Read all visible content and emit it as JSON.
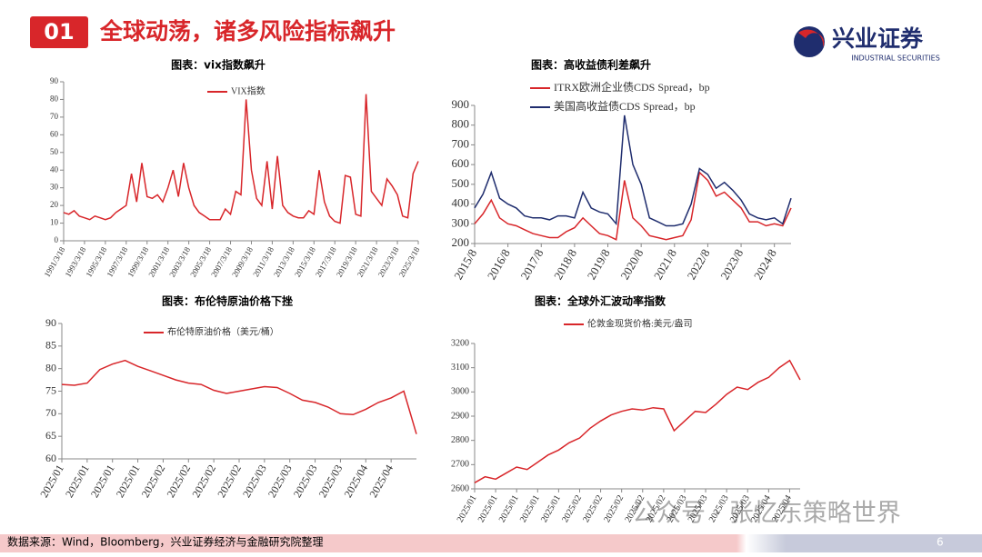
{
  "header": {
    "number": "01",
    "title": "全球动荡，诸多风险指标飙升",
    "logo": "兴业证券",
    "logo_en": "INDUSTRIAL SECURITIES"
  },
  "chart_data": [
    {
      "type": "line",
      "title": "图表：vix指数飙升",
      "categories": [
        "1991/3/18",
        null,
        null,
        null,
        "1993/3/18",
        null,
        null,
        null,
        "1995/3/18",
        null,
        null,
        null,
        "1997/3/18",
        null,
        null,
        null,
        "1999/3/18",
        null,
        null,
        null,
        "2001/3/18",
        null,
        null,
        null,
        "2003/3/18",
        null,
        null,
        null,
        "2005/3/18",
        null,
        null,
        null,
        "2007/3/18",
        null,
        null,
        null,
        "2009/3/18",
        null,
        null,
        null,
        "2011/3/18",
        null,
        null,
        null,
        "2013/3/18",
        null,
        null,
        null,
        "2015/3/18",
        null,
        null,
        null,
        "2017/3/18",
        null,
        null,
        null,
        "2019/3/18",
        null,
        null,
        null,
        "2021/3/18",
        null,
        null,
        null,
        "2023/3/18",
        null,
        null,
        null,
        "2025/3/18"
      ],
      "series": [
        {
          "name": "VIX指数",
          "color": "#d8262a",
          "values": [
            16,
            15,
            17,
            14,
            13,
            12,
            14,
            13,
            12,
            13,
            16,
            18,
            20,
            38,
            22,
            44,
            25,
            24,
            26,
            22,
            30,
            40,
            25,
            44,
            30,
            20,
            16,
            14,
            12,
            12,
            12,
            18,
            15,
            28,
            26,
            80,
            40,
            24,
            20,
            45,
            18,
            48,
            20,
            16,
            14,
            13,
            13,
            17,
            15,
            40,
            22,
            14,
            11,
            10,
            37,
            36,
            15,
            14,
            83,
            28,
            24,
            20,
            35,
            31,
            26,
            14,
            13,
            38,
            45
          ]
        }
      ],
      "ylim": [
        0,
        90
      ],
      "yticks": [
        0,
        10,
        20,
        30,
        40,
        50,
        60,
        70,
        80,
        90
      ]
    },
    {
      "type": "line",
      "title": "图表：高收益债利差飙升",
      "categories": [
        "2015/8",
        null,
        null,
        null,
        "2016/8",
        null,
        null,
        null,
        "2017/8",
        null,
        null,
        null,
        "2018/8",
        null,
        null,
        null,
        "2019/8",
        null,
        null,
        null,
        "2020/8",
        null,
        null,
        null,
        "2021/8",
        null,
        null,
        null,
        "2022/8",
        null,
        null,
        null,
        "2023/8",
        null,
        null,
        null,
        "2024/8",
        null,
        null
      ],
      "series": [
        {
          "name": "ITRX欧洲企业债CDS Spread，bp",
          "color": "#d8262a",
          "values": [
            300,
            350,
            420,
            330,
            300,
            290,
            270,
            250,
            240,
            230,
            230,
            260,
            280,
            330,
            290,
            250,
            240,
            220,
            520,
            330,
            290,
            240,
            230,
            220,
            230,
            240,
            320,
            560,
            520,
            440,
            460,
            420,
            380,
            310,
            310,
            290,
            300,
            290,
            380
          ]
        },
        {
          "name": "美国高收益债CDS Spread，bp",
          "color": "#1f2d6e",
          "values": [
            380,
            450,
            560,
            430,
            400,
            380,
            340,
            330,
            330,
            320,
            340,
            340,
            330,
            460,
            380,
            360,
            350,
            300,
            850,
            600,
            500,
            330,
            310,
            290,
            290,
            300,
            400,
            580,
            550,
            480,
            510,
            470,
            420,
            350,
            330,
            320,
            330,
            300,
            430
          ]
        }
      ],
      "ylim": [
        200,
        900
      ],
      "yticks": [
        200,
        300,
        400,
        500,
        600,
        700,
        800,
        900
      ]
    },
    {
      "type": "line",
      "title": "图表：布伦特原油价格下挫",
      "categories": [
        "2025/01",
        null,
        "2025/01",
        null,
        "2025/01",
        null,
        "2025/01",
        null,
        "2025/02",
        null,
        "2025/02",
        null,
        "2025/02",
        null,
        "2025/02",
        null,
        "2025/03",
        null,
        "2025/03",
        null,
        "2025/03",
        null,
        "2025/03",
        null,
        "2025/04",
        null,
        "2025/04",
        null,
        null
      ],
      "series": [
        {
          "name": "布伦特原油价格（美元/桶）",
          "color": "#d8262a",
          "values": [
            76.5,
            76.3,
            76.8,
            79.8,
            81.0,
            81.8,
            80.5,
            79.5,
            78.5,
            77.5,
            76.8,
            76.5,
            75.2,
            74.5,
            75.0,
            75.5,
            76.0,
            75.8,
            74.5,
            73.0,
            72.5,
            71.5,
            70.0,
            69.8,
            71.0,
            72.5,
            73.5,
            75.0,
            65.5
          ]
        }
      ],
      "ylim": [
        60,
        90
      ],
      "yticks": [
        60,
        65,
        70,
        75,
        80,
        85,
        90
      ]
    },
    {
      "type": "line",
      "title": "图表：全球外汇波动率指数",
      "categories": [
        "2025/01",
        null,
        "2025/01",
        null,
        "2025/01",
        null,
        "2025/01",
        null,
        "2025/01",
        null,
        "2025/02",
        null,
        "2025/02",
        null,
        "2025/02",
        null,
        "2025/02",
        null,
        "2025/02",
        null,
        "2025/03",
        null,
        "2025/03",
        null,
        "2025/03",
        null,
        "2025/03",
        null,
        "2025/04",
        null,
        "2025/04",
        null
      ],
      "series": [
        {
          "name": "伦敦金现货价格:美元/盎司",
          "color": "#d8262a",
          "values": [
            2625,
            2650,
            2640,
            2665,
            2690,
            2680,
            2710,
            2740,
            2760,
            2790,
            2810,
            2850,
            2880,
            2905,
            2920,
            2930,
            2925,
            2935,
            2930,
            2840,
            2880,
            2920,
            2915,
            2950,
            2990,
            3020,
            3010,
            3040,
            3060,
            3100,
            3130,
            3050
          ]
        }
      ],
      "ylim": [
        2600,
        3200
      ],
      "yticks": [
        2600,
        2700,
        2800,
        2900,
        3000,
        3100,
        3200
      ]
    }
  ],
  "footer": {
    "source": "数据来源：Wind，Bloomberg，兴业证券经济与金融研究院整理",
    "page": "6",
    "watermark": "公众号 · 张忆东策略世界"
  }
}
